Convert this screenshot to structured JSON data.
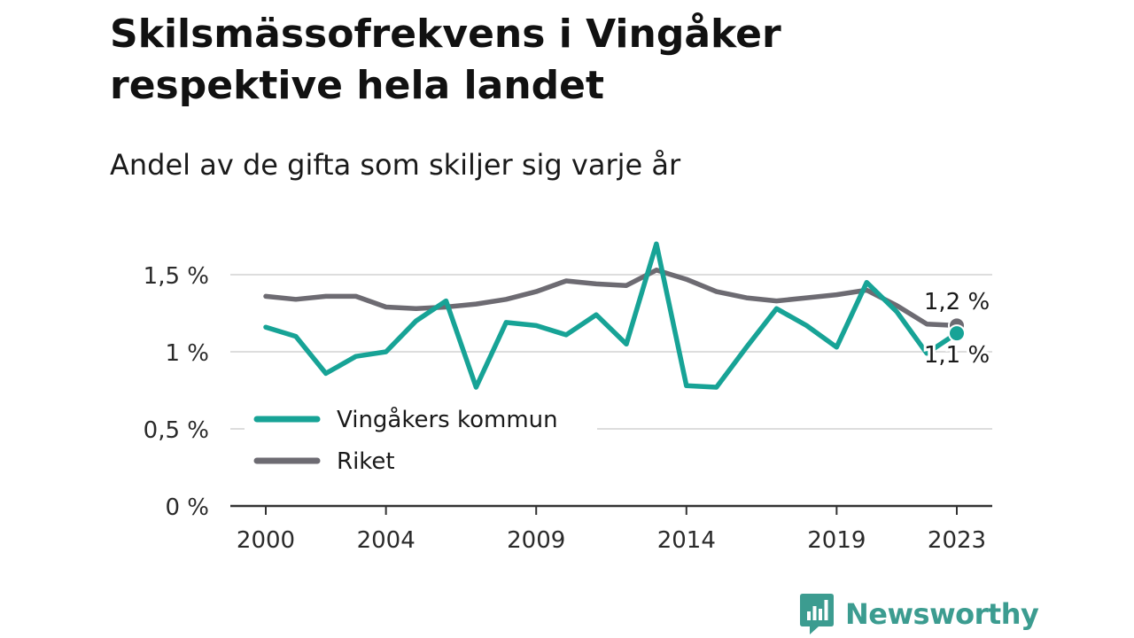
{
  "chart_data": {
    "type": "line",
    "title": "Skilsmässofrekvens i Vingåker respektive hela landet",
    "subtitle": "Andel av de gifta som skiljer sig varje år",
    "x": [
      2000,
      2001,
      2002,
      2003,
      2004,
      2005,
      2006,
      2007,
      2008,
      2009,
      2010,
      2011,
      2012,
      2013,
      2014,
      2015,
      2016,
      2017,
      2018,
      2019,
      2020,
      2021,
      2022,
      2023
    ],
    "x_ticks": [
      2000,
      2004,
      2009,
      2014,
      2019,
      2023
    ],
    "y_ticks": [
      0,
      0.5,
      1,
      1.5
    ],
    "y_tick_labels": [
      "0 %",
      "0,5 %",
      "1 %",
      "1,5 %"
    ],
    "ylim": [
      0,
      1.7
    ],
    "grid": "horizontal",
    "legend_placement": "bottom-left",
    "series": [
      {
        "name": "Vingåkers kommun",
        "color": "#17a396",
        "values": [
          1.16,
          1.1,
          0.86,
          0.97,
          1.0,
          1.2,
          1.33,
          0.77,
          1.19,
          1.17,
          1.11,
          1.24,
          1.05,
          1.7,
          0.78,
          0.77,
          1.03,
          1.28,
          1.17,
          1.03,
          1.45,
          1.26,
          0.99,
          1.12
        ],
        "end_label": "1,1 %"
      },
      {
        "name": "Riket",
        "color": "#6d6b72",
        "values": [
          1.36,
          1.34,
          1.36,
          1.36,
          1.29,
          1.28,
          1.29,
          1.31,
          1.34,
          1.39,
          1.46,
          1.44,
          1.43,
          1.53,
          1.47,
          1.39,
          1.35,
          1.33,
          1.35,
          1.37,
          1.4,
          1.3,
          1.18,
          1.17
        ],
        "end_label": "1,2 %"
      }
    ]
  },
  "brand": {
    "name": "Newsworthy",
    "logo_icon": "bar-chart-badge-icon",
    "color": "#3c9c90"
  }
}
